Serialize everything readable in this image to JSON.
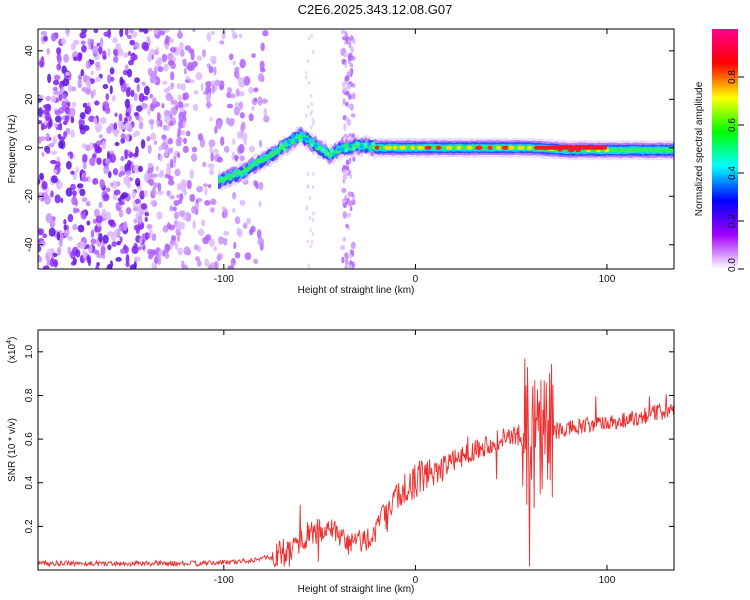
{
  "title": "C2E6.2025.343.12.08.G07",
  "chart_data": [
    {
      "type": "heatmap",
      "xlabel": "Height of straight line (km)",
      "ylabel": "Frequency (Hz)",
      "xlim": [
        -197,
        135
      ],
      "ylim": [
        -50,
        49
      ],
      "xticks": [
        -100,
        0,
        100
      ],
      "yticks": [
        -40,
        -20,
        0,
        20,
        40
      ],
      "colorbar": {
        "label": "Normalized spectral amplitude",
        "range": [
          0,
          1
        ],
        "ticks": [
          "0.0",
          "0.2",
          "0.4",
          "0.6",
          "0.8"
        ],
        "colors": [
          "#ffffff",
          "#a000ff",
          "#0000ff",
          "#00ffff",
          "#00ff00",
          "#ffff00",
          "#ff0000",
          "#ff0090"
        ]
      },
      "ridge": {
        "x": [
          -103,
          -97,
          -90,
          -82,
          -75,
          -68,
          -60,
          -52,
          -45,
          -38,
          -30,
          -20,
          0,
          20,
          40,
          60,
          80,
          100,
          135
        ],
        "y": [
          -14,
          -12,
          -10,
          -6,
          -3,
          1,
          5,
          1,
          -3,
          0,
          1,
          0,
          0,
          0,
          0,
          0,
          -1,
          -1,
          -1
        ]
      }
    },
    {
      "type": "line",
      "xlabel": "Height of straight line (km)",
      "ylabel": "SNR (10 * v/v)",
      "scale_label": "(x10",
      "scale_exp": "4",
      "scale_close": ")",
      "xlim": [
        -197,
        135
      ],
      "ylim": [
        0,
        1.1
      ],
      "xticks": [
        -100,
        0,
        100
      ],
      "yticks": [
        "0.2",
        "0.4",
        "0.6",
        "0.8",
        "1.0"
      ],
      "series_color": "#ee3030",
      "envelope": {
        "x": [
          -197,
          -140,
          -110,
          -90,
          -75,
          -65,
          -55,
          -45,
          -35,
          -25,
          -15,
          -5,
          0,
          10,
          20,
          30,
          45,
          55,
          62,
          68,
          75,
          90,
          105,
          120,
          135
        ],
        "y": [
          0.03,
          0.03,
          0.03,
          0.04,
          0.06,
          0.1,
          0.17,
          0.18,
          0.12,
          0.14,
          0.25,
          0.38,
          0.41,
          0.46,
          0.5,
          0.55,
          0.6,
          0.62,
          0.63,
          0.63,
          0.64,
          0.66,
          0.68,
          0.71,
          0.74
        ]
      }
    }
  ]
}
